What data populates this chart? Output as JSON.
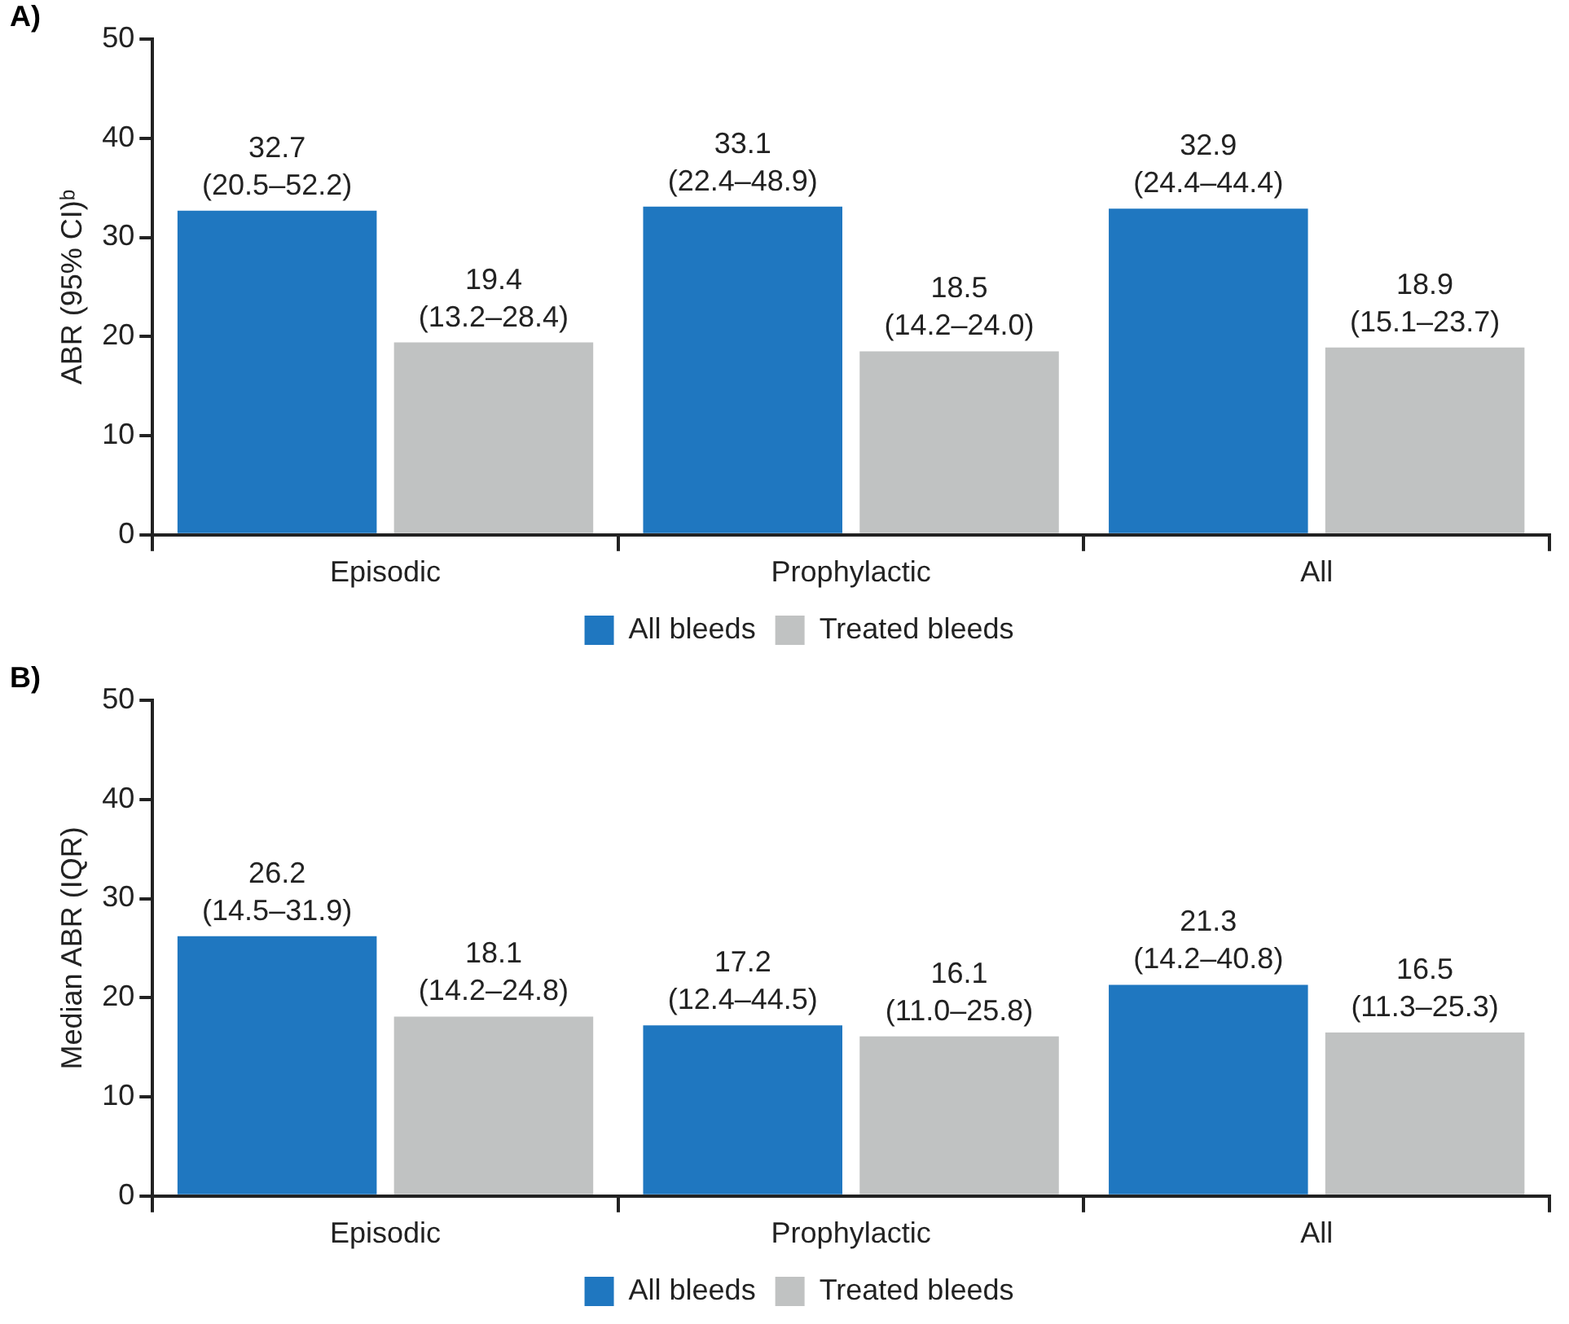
{
  "chart_data": [
    {
      "type": "bar",
      "ylabel": "ABR (95% CI)ᵇ",
      "annotations": [
        "A)"
      ],
      "categories": [
        "Episodic",
        "Prophylactic",
        "All"
      ],
      "ylim": [
        0,
        50
      ],
      "yticks": [
        0,
        10,
        20,
        30,
        40,
        50
      ],
      "grid": false,
      "legend": "bottom",
      "series": [
        {
          "name": "All bleeds",
          "color": "#1f77c0",
          "values": [
            32.7,
            33.1,
            32.9
          ],
          "value_labels": [
            "32.7\n(20.5–52.2)",
            "33.1\n(22.4–48.9)",
            "32.9\n(24.4–44.4)"
          ]
        },
        {
          "name": "Treated bleeds",
          "color": "#c0c2c2",
          "values": [
            19.4,
            18.5,
            18.9
          ],
          "value_labels": [
            "19.4\n(13.2–28.4)",
            "18.5\n(14.2–24.0)",
            "18.9\n(15.1–23.7)"
          ]
        }
      ]
    },
    {
      "type": "bar",
      "ylabel": "Median ABR (IQR)",
      "annotations": [
        "B)"
      ],
      "categories": [
        "Episodic",
        "Prophylactic",
        "All"
      ],
      "ylim": [
        0,
        50
      ],
      "yticks": [
        0,
        10,
        20,
        30,
        40,
        50
      ],
      "grid": false,
      "legend": "bottom",
      "series": [
        {
          "name": "All bleeds",
          "color": "#1f77c0",
          "values": [
            26.2,
            17.2,
            21.3
          ],
          "value_labels": [
            "26.2\n(14.5–31.9)",
            "17.2\n(12.4–44.5)",
            "21.3\n(14.2–40.8)"
          ]
        },
        {
          "name": "Treated bleeds",
          "color": "#c0c2c2",
          "values": [
            18.1,
            16.1,
            16.5
          ],
          "value_labels": [
            "18.1\n(14.2–24.8)",
            "16.1\n(11.0–25.8)",
            "16.5\n(11.3–25.3)"
          ]
        }
      ]
    }
  ]
}
